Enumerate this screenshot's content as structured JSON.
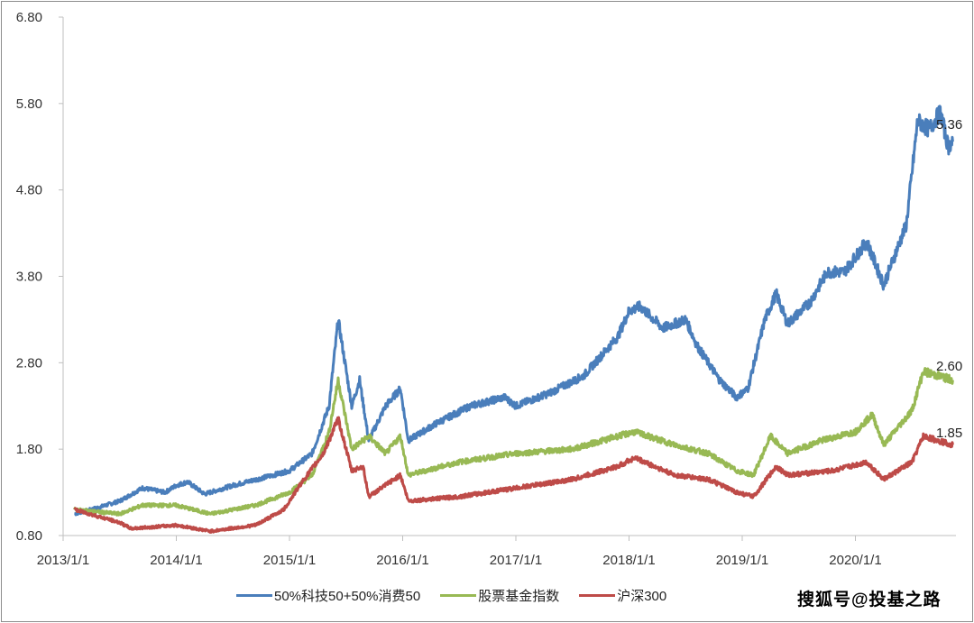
{
  "chart_data": {
    "type": "line",
    "title": "",
    "xlabel": "",
    "ylabel": "",
    "ylim": [
      0.8,
      6.8
    ],
    "yticks": [
      "0.80",
      "1.80",
      "2.80",
      "3.80",
      "4.80",
      "5.80",
      "6.80"
    ],
    "xlim": [
      2013.0,
      2020.88
    ],
    "xticks": [
      {
        "label": "2013/1/1",
        "x": 2013.0
      },
      {
        "label": "2014/1/1",
        "x": 2014.0
      },
      {
        "label": "2015/1/1",
        "x": 2015.0
      },
      {
        "label": "2016/1/1",
        "x": 2016.0
      },
      {
        "label": "2017/1/1",
        "x": 2017.0
      },
      {
        "label": "2018/1/1",
        "x": 2018.0
      },
      {
        "label": "2019/1/1",
        "x": 2019.0
      },
      {
        "label": "2020/1/1",
        "x": 2020.0
      }
    ],
    "grid": false,
    "legend_position": "bottom",
    "series": [
      {
        "name": "50%科技50+50%消费50",
        "color": "#4a7ebb",
        "end_label": "5.36",
        "x": [
          2013.1,
          2013.3,
          2013.5,
          2013.7,
          2013.9,
          2014.0,
          2014.1,
          2014.25,
          2014.5,
          2014.8,
          2015.0,
          2015.2,
          2015.35,
          2015.43,
          2015.55,
          2015.62,
          2015.7,
          2015.85,
          2015.98,
          2016.05,
          2016.3,
          2016.6,
          2016.9,
          2017.0,
          2017.3,
          2017.6,
          2017.9,
          2018.0,
          2018.1,
          2018.3,
          2018.5,
          2018.6,
          2018.8,
          2018.95,
          2019.05,
          2019.2,
          2019.3,
          2019.4,
          2019.6,
          2019.75,
          2019.9,
          2020.1,
          2020.25,
          2020.45,
          2020.55,
          2020.65,
          2020.75,
          2020.82,
          2020.86
        ],
        "y": [
          1.05,
          1.12,
          1.2,
          1.35,
          1.3,
          1.38,
          1.42,
          1.28,
          1.38,
          1.48,
          1.55,
          1.75,
          2.3,
          3.3,
          2.3,
          2.6,
          1.9,
          2.3,
          2.5,
          1.9,
          2.1,
          2.3,
          2.4,
          2.3,
          2.45,
          2.65,
          3.1,
          3.4,
          3.45,
          3.2,
          3.3,
          3.0,
          2.6,
          2.4,
          2.5,
          3.3,
          3.6,
          3.25,
          3.5,
          3.85,
          3.85,
          4.2,
          3.7,
          4.4,
          5.6,
          5.5,
          5.7,
          5.3,
          5.36
        ]
      },
      {
        "name": "股票基金指数",
        "color": "#98b954",
        "end_label": "2.60",
        "x": [
          2013.1,
          2013.5,
          2013.7,
          2014.0,
          2014.3,
          2014.7,
          2015.0,
          2015.2,
          2015.35,
          2015.43,
          2015.55,
          2015.7,
          2015.85,
          2015.98,
          2016.05,
          2016.5,
          2017.0,
          2017.5,
          2017.9,
          2018.05,
          2018.4,
          2018.7,
          2018.95,
          2019.1,
          2019.25,
          2019.4,
          2019.7,
          2020.0,
          2020.15,
          2020.25,
          2020.5,
          2020.6,
          2020.86
        ],
        "y": [
          1.1,
          1.05,
          1.15,
          1.15,
          1.05,
          1.15,
          1.3,
          1.5,
          2.0,
          2.6,
          1.8,
          1.95,
          1.75,
          1.95,
          1.5,
          1.65,
          1.75,
          1.8,
          1.95,
          2.0,
          1.85,
          1.75,
          1.55,
          1.5,
          1.95,
          1.75,
          1.9,
          2.0,
          2.2,
          1.85,
          2.25,
          2.7,
          2.6
        ]
      },
      {
        "name": "沪深300",
        "color": "#be4b48",
        "end_label": "1.85",
        "x": [
          2013.1,
          2013.5,
          2013.6,
          2014.0,
          2014.3,
          2014.7,
          2014.95,
          2015.1,
          2015.3,
          2015.43,
          2015.55,
          2015.65,
          2015.7,
          2015.98,
          2016.05,
          2016.5,
          2017.0,
          2017.5,
          2017.9,
          2018.05,
          2018.4,
          2018.7,
          2018.95,
          2019.1,
          2019.3,
          2019.4,
          2019.8,
          2020.1,
          2020.25,
          2020.5,
          2020.6,
          2020.86
        ],
        "y": [
          1.1,
          0.95,
          0.88,
          0.92,
          0.85,
          0.92,
          1.1,
          1.4,
          1.75,
          2.15,
          1.55,
          1.6,
          1.25,
          1.5,
          1.2,
          1.25,
          1.35,
          1.45,
          1.6,
          1.7,
          1.5,
          1.45,
          1.3,
          1.25,
          1.6,
          1.5,
          1.55,
          1.65,
          1.45,
          1.65,
          1.95,
          1.85
        ]
      }
    ]
  },
  "watermark": "搜狐号@投基之路"
}
